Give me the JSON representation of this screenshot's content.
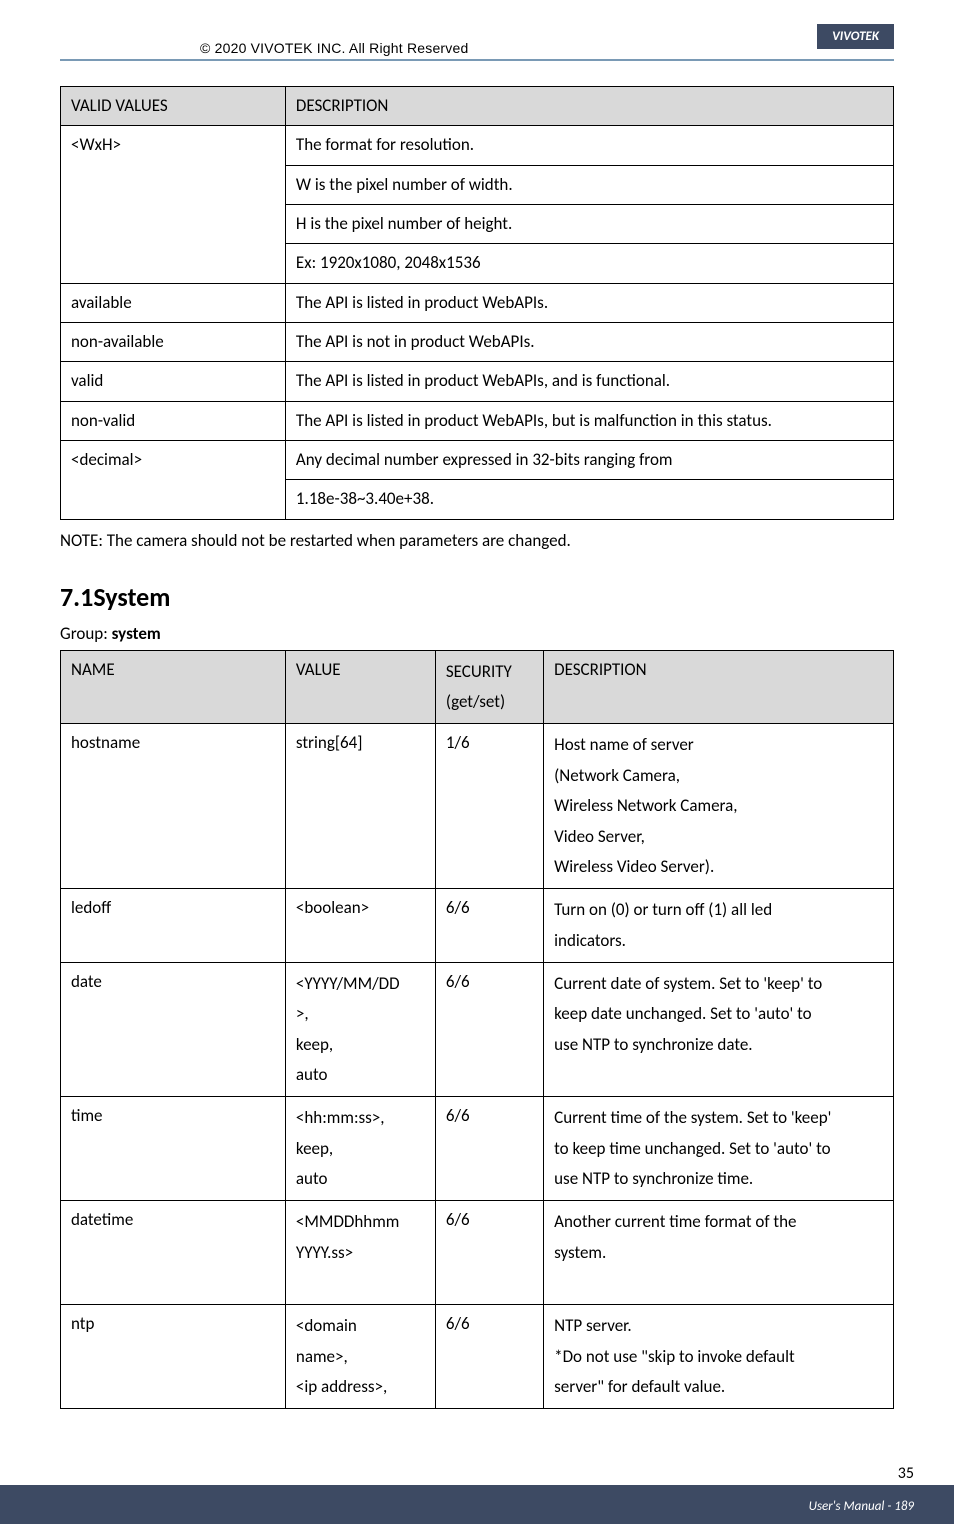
{
  "header": {
    "watermark": "",
    "copyright": "© 2020 VIVOTEK INC. All Right Reserved",
    "brand": "VIVOTEK"
  },
  "table1": {
    "headers": {
      "c1": "VALID VALUES",
      "c2": "DESCRIPTION"
    },
    "rows": [
      {
        "c1": "<WxH>",
        "c2_lines": [
          "The format for resolution.",
          "W is the pixel number of width.",
          "H is the pixel number of height.",
          "Ex: 1920x1080, 2048x1536"
        ]
      },
      {
        "c1": "available",
        "c2": "The API is listed in product WebAPIs."
      },
      {
        "c1": "non-available",
        "c2": "The API is not in product WebAPIs."
      },
      {
        "c1": "valid",
        "c2": "The API is listed in product WebAPIs, and is functional."
      },
      {
        "c1": "non-valid",
        "c2": "The API is listed in product WebAPIs, but is malfunction in this status."
      },
      {
        "c1": "<decimal>",
        "c2_lines": [
          "Any decimal number expressed in 32-bits ranging from",
          "1.18e-38~3.40e+38."
        ]
      }
    ]
  },
  "note": "NOTE: The camera should not be restarted when parameters are changed.",
  "section": {
    "number": "7.1",
    "title": "System"
  },
  "group": {
    "label": "Group: ",
    "name": "system"
  },
  "table2": {
    "headers": {
      "c1": "NAME",
      "c2": "VALUE",
      "c3_l1": "SECURITY",
      "c3_l2": "(get/set)",
      "c4": "DESCRIPTION"
    },
    "rows": [
      {
        "c1": "hostname",
        "c2": "string[64]",
        "c3": "1/6",
        "c4_lines": [
          "Host name of server",
          "(Network Camera,",
          "Wireless Network Camera,",
          "Video Server,",
          "Wireless Video Server)."
        ]
      },
      {
        "c1": "ledoff",
        "c2": "<boolean>",
        "c3": "6/6",
        "c4_lines": [
          "Turn on (0) or turn off (1) all led",
          "indicators."
        ]
      },
      {
        "c1": "date",
        "c2_lines": [
          "<YYYY/MM/DD",
          ">,",
          "keep,",
          "auto"
        ],
        "c3": "6/6",
        "c4_lines": [
          "Current date of system. Set to 'keep' to",
          "keep date unchanged. Set to 'auto' to",
          "use NTP to synchronize date."
        ]
      },
      {
        "c1": "time",
        "c2_lines": [
          "<hh:mm:ss>,",
          "keep,",
          "auto"
        ],
        "c3": "6/6",
        "c4_lines": [
          "Current time of the system. Set to 'keep'",
          "to keep time unchanged. Set to 'auto' to",
          "use NTP to synchronize time."
        ]
      },
      {
        "c1": "datetime",
        "c2_lines": [
          "<MMDDhhmm",
          "YYYY.ss>"
        ],
        "c3": "6/6",
        "c4_lines": [
          "Another current time format of the",
          "system.",
          " "
        ]
      },
      {
        "c1": "ntp",
        "c2_lines": [
          "<domain",
          "name>,",
          "<ip address>,"
        ],
        "c3": "6/6",
        "c4_lines": [
          "NTP server.",
          "*Do not use \"skip to invoke default",
          "server\" for default value."
        ]
      }
    ]
  },
  "footer": {
    "page_top": "35",
    "manual": "User's Manual - 189"
  }
}
